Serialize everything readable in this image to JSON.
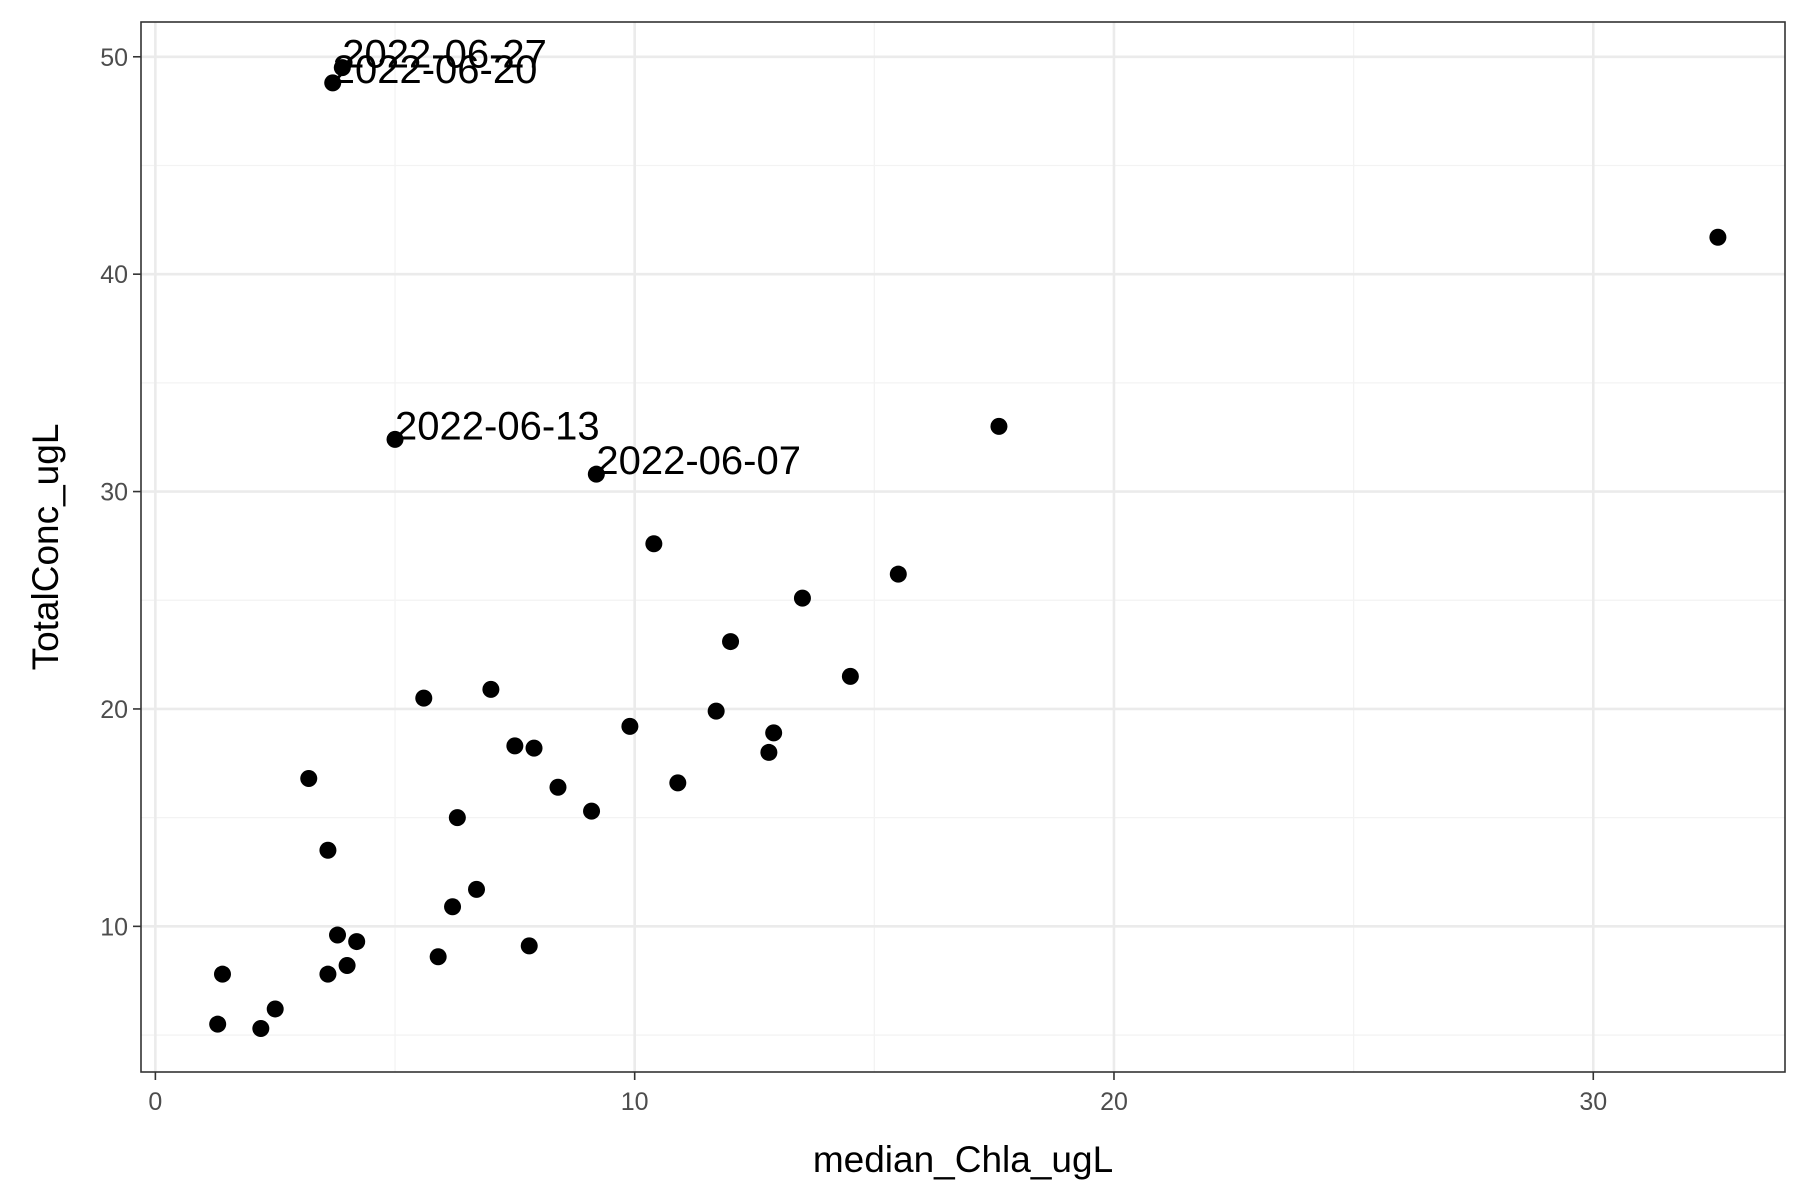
{
  "chart_data": {
    "type": "scatter",
    "title": "",
    "xlabel": "median_Chla_ugL",
    "ylabel": "TotalConc_ugL",
    "xlim": [
      -0.3,
      34.0
    ],
    "ylim": [
      3.3,
      51.6
    ],
    "x_ticks": [
      0,
      10,
      20,
      30
    ],
    "y_ticks": [
      10,
      20,
      30,
      40,
      50
    ],
    "x_tick_labels": [
      "0",
      "10",
      "20",
      "30"
    ],
    "y_tick_labels": [
      "10",
      "20",
      "30",
      "40",
      "50"
    ],
    "x_minor_breaks": [
      5,
      15,
      25
    ],
    "y_minor_breaks": [
      5,
      15,
      25,
      35,
      45
    ],
    "grid": true,
    "theme": "bw",
    "colors": {
      "point": "#000000",
      "grid_major": "#ebebeb",
      "grid_minor": "#f3f3f3",
      "panel_border": "#333333",
      "tick_label": "#4d4d4d"
    },
    "points": [
      {
        "x": 32.6,
        "y": 41.7
      },
      {
        "x": 17.6,
        "y": 33.0
      },
      {
        "x": 3.9,
        "y": 49.5,
        "label": "2022-06-27"
      },
      {
        "x": 3.7,
        "y": 48.8,
        "label": "2022-06-20"
      },
      {
        "x": 5.0,
        "y": 32.4,
        "label": "2022-06-13"
      },
      {
        "x": 9.2,
        "y": 30.8,
        "label": "2022-06-07"
      },
      {
        "x": 10.4,
        "y": 27.6
      },
      {
        "x": 15.5,
        "y": 26.2
      },
      {
        "x": 13.5,
        "y": 25.1
      },
      {
        "x": 12.0,
        "y": 23.1
      },
      {
        "x": 14.5,
        "y": 21.5
      },
      {
        "x": 7.0,
        "y": 20.9
      },
      {
        "x": 5.6,
        "y": 20.5
      },
      {
        "x": 11.7,
        "y": 19.9
      },
      {
        "x": 9.9,
        "y": 19.2
      },
      {
        "x": 12.9,
        "y": 18.9
      },
      {
        "x": 7.5,
        "y": 18.3
      },
      {
        "x": 7.9,
        "y": 18.2
      },
      {
        "x": 12.8,
        "y": 18.0
      },
      {
        "x": 3.2,
        "y": 16.8
      },
      {
        "x": 10.9,
        "y": 16.6
      },
      {
        "x": 8.4,
        "y": 16.4
      },
      {
        "x": 9.1,
        "y": 15.3
      },
      {
        "x": 6.3,
        "y": 15.0
      },
      {
        "x": 3.6,
        "y": 13.5
      },
      {
        "x": 6.7,
        "y": 11.7
      },
      {
        "x": 6.2,
        "y": 10.9
      },
      {
        "x": 3.8,
        "y": 9.6
      },
      {
        "x": 4.2,
        "y": 9.3
      },
      {
        "x": 7.8,
        "y": 9.1
      },
      {
        "x": 5.9,
        "y": 8.6
      },
      {
        "x": 4.0,
        "y": 8.2
      },
      {
        "x": 1.4,
        "y": 7.8
      },
      {
        "x": 3.6,
        "y": 7.8
      },
      {
        "x": 2.5,
        "y": 6.2
      },
      {
        "x": 1.3,
        "y": 5.5
      },
      {
        "x": 2.2,
        "y": 5.3
      }
    ]
  }
}
